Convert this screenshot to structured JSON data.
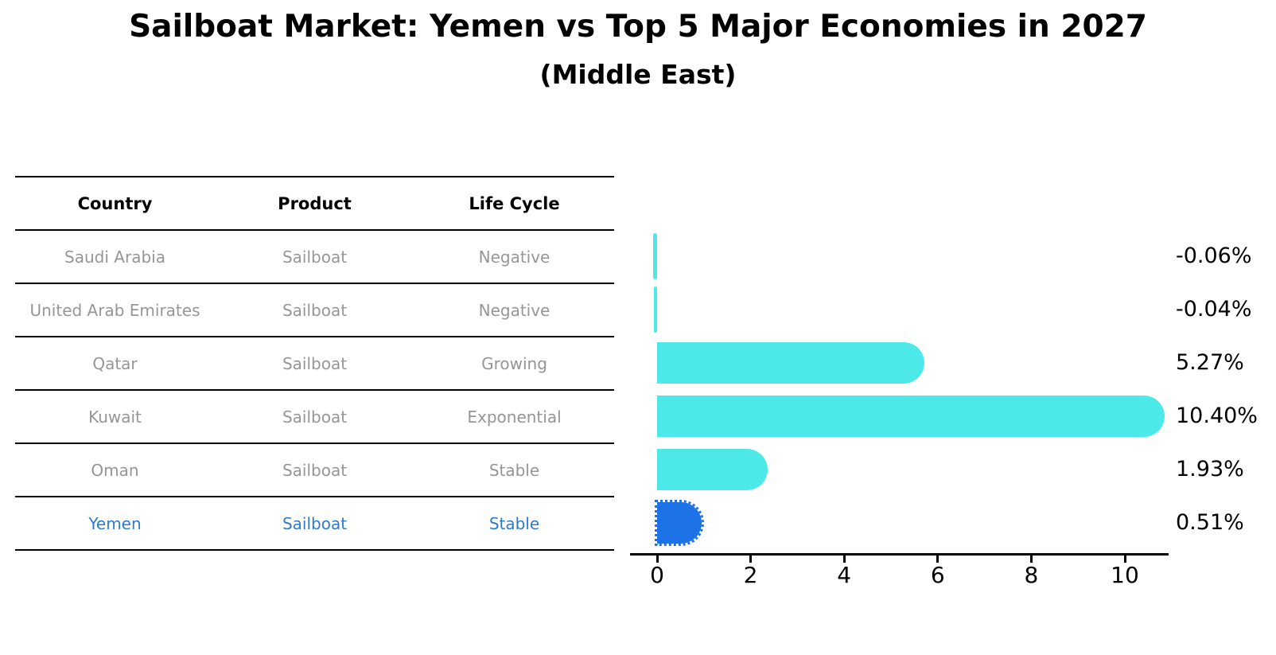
{
  "title": "Sailboat Market: Yemen vs Top 5 Major Economies in 2027",
  "subtitle": "(Middle East)",
  "table": {
    "headers": [
      "Country",
      "Product",
      "Life Cycle"
    ],
    "rows": [
      {
        "country": "Saudi Arabia",
        "product": "Sailboat",
        "life_cycle": "Negative"
      },
      {
        "country": "United Arab Emirates",
        "product": "Sailboat",
        "life_cycle": "Negative"
      },
      {
        "country": "Qatar",
        "product": "Sailboat",
        "life_cycle": "Growing"
      },
      {
        "country": "Kuwait",
        "product": "Sailboat",
        "life_cycle": "Exponential"
      },
      {
        "country": "Oman",
        "product": "Sailboat",
        "life_cycle": "Stable"
      },
      {
        "country": "Yemen",
        "product": "Sailboat",
        "life_cycle": "Stable"
      }
    ],
    "highlight_row": "Yemen"
  },
  "chart_data": {
    "type": "bar",
    "orientation": "horizontal",
    "title": "Sailboat Market: Yemen vs Top 5 Major Economies in 2027",
    "subtitle": "(Middle East)",
    "categories": [
      "Saudi Arabia",
      "United Arab Emirates",
      "Qatar",
      "Kuwait",
      "Oman",
      "Yemen"
    ],
    "values": [
      -0.06,
      -0.04,
      5.27,
      10.4,
      1.93,
      0.51
    ],
    "value_labels": [
      "-0.06%",
      "-0.04%",
      "5.27%",
      "10.40%",
      "1.93%",
      "0.51%"
    ],
    "x_ticks": [
      "0",
      "2",
      "4",
      "6",
      "8",
      "10"
    ],
    "xlim": [
      -0.6,
      10.9
    ],
    "grid": false,
    "legend": null,
    "highlight_index": 5
  },
  "colors": {
    "background": "#FFFFFF",
    "bar": "#4DE9E9",
    "highlight_bar": "#1E72E8",
    "highlight_text": "#2E7BC9",
    "cell_text": "#969696",
    "header_text": "#000000",
    "axis": "#000000"
  }
}
